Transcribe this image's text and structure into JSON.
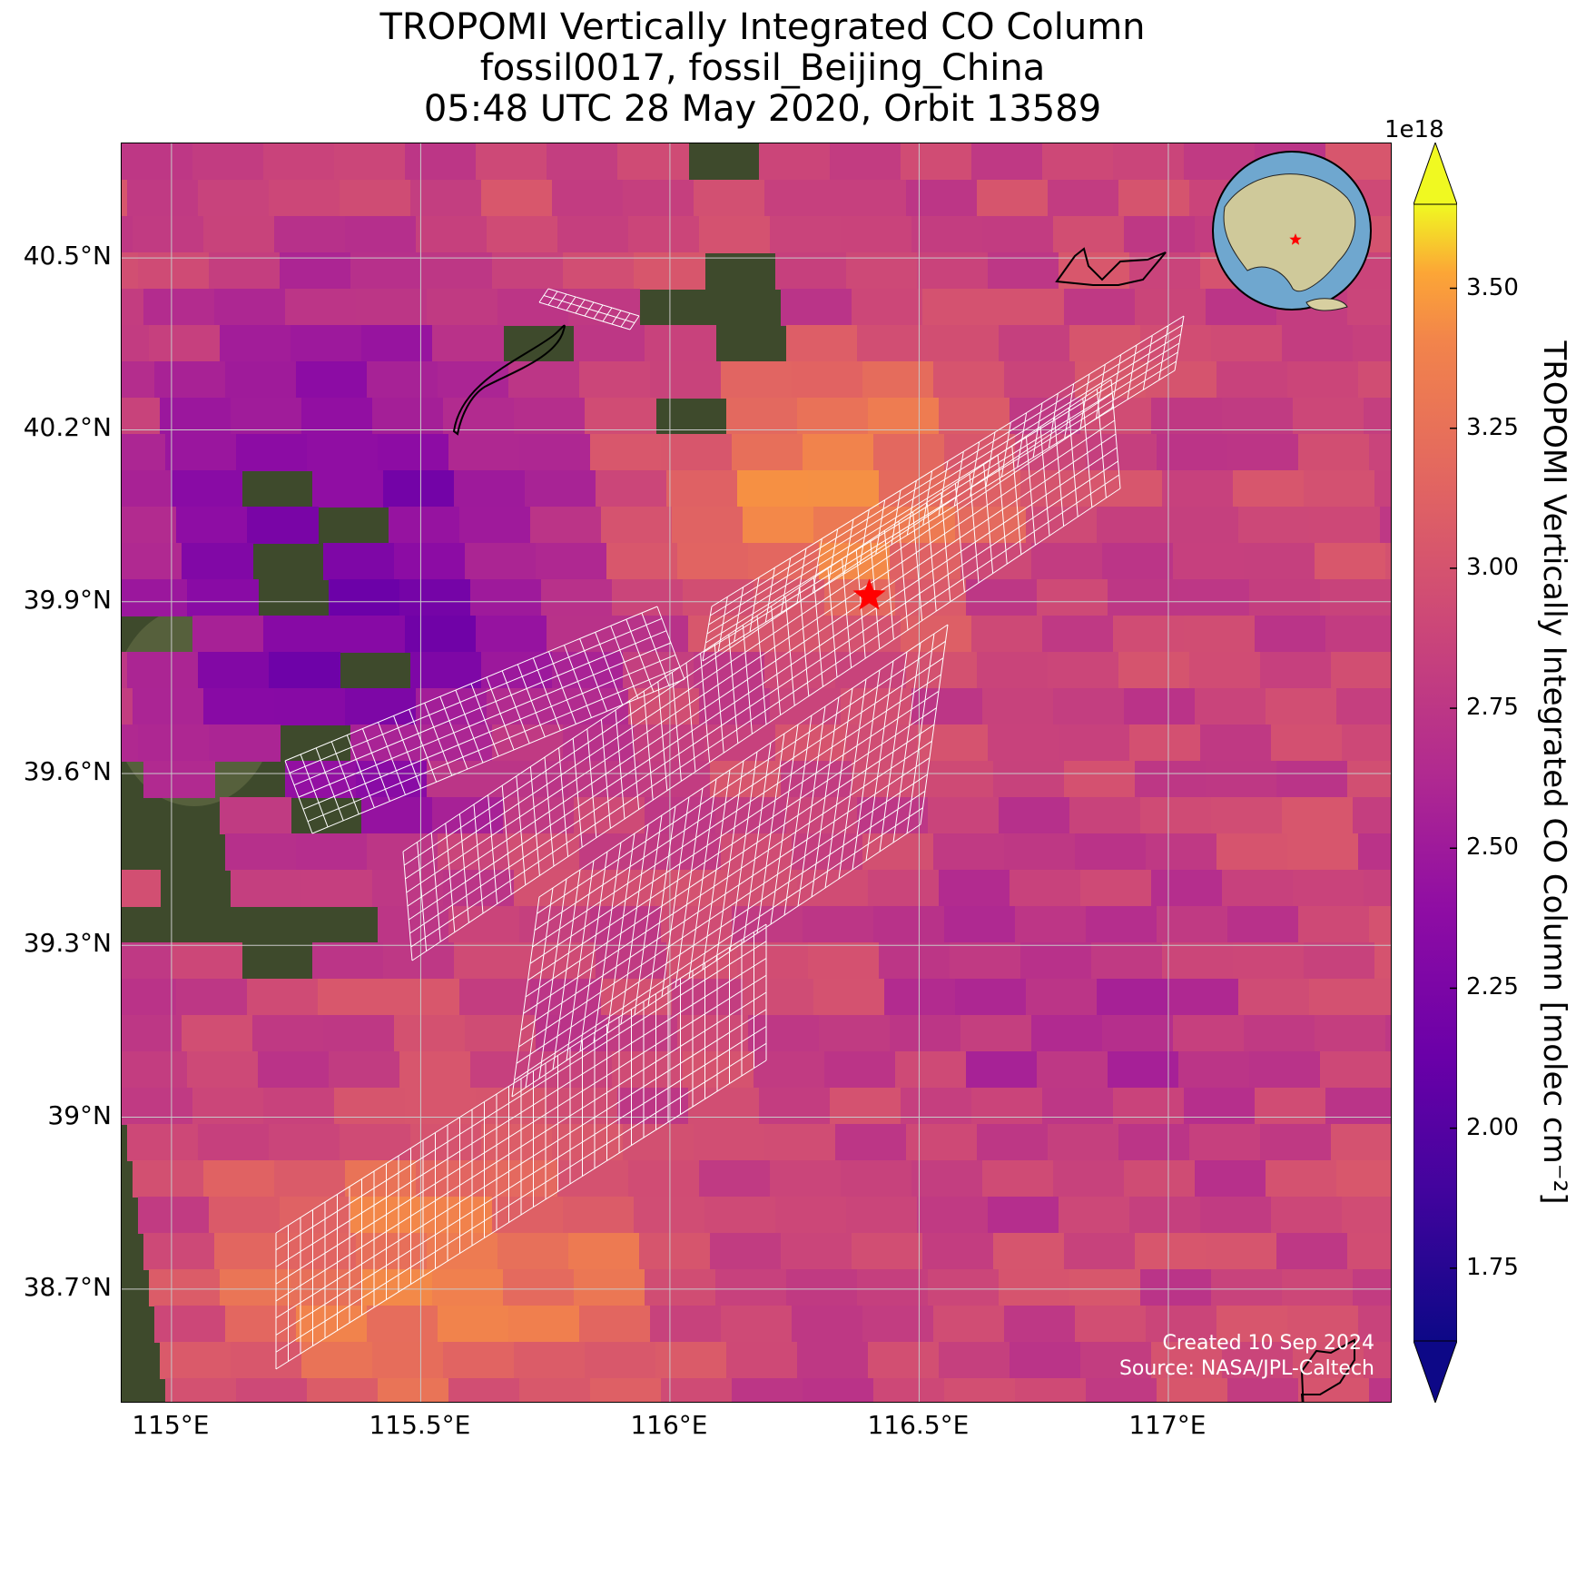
{
  "title": {
    "line1": "TROPOMI Vertically Integrated CO Column",
    "line2": "fossil0017, fossil_Beijing_China",
    "line3": "05:48 UTC 28 May 2020, Orbit 13589"
  },
  "map": {
    "lon_range": [
      114.9,
      117.45
    ],
    "lat_range": [
      38.5,
      40.7
    ],
    "lon_ticks": [
      {
        "value": 115.0,
        "label": "115°E"
      },
      {
        "value": 115.5,
        "label": "115.5°E"
      },
      {
        "value": 116.0,
        "label": "116°E"
      },
      {
        "value": 116.5,
        "label": "116.5°E"
      },
      {
        "value": 117.0,
        "label": "117°E"
      }
    ],
    "lat_ticks": [
      {
        "value": 40.5,
        "label": "40.5°N"
      },
      {
        "value": 40.2,
        "label": "40.2°N"
      },
      {
        "value": 39.9,
        "label": "39.9°N"
      },
      {
        "value": 39.6,
        "label": "39.6°N"
      },
      {
        "value": 39.3,
        "label": "39.3°N"
      },
      {
        "value": 39.0,
        "label": "39°N"
      },
      {
        "value": 38.7,
        "label": "38.7°N"
      }
    ],
    "target": {
      "lon": 116.4,
      "lat": 39.91,
      "color": "#ff0000",
      "icon": "star-icon"
    },
    "inset": {
      "icon": "globe-icon",
      "marker_color": "#ff0000"
    },
    "background": "satellite-imagery"
  },
  "credits": {
    "created": "Created 10 Sep 2024",
    "source": "Source: NASA/JPL-Caltech"
  },
  "colorbar": {
    "label": "TROPOMI Vertically Integrated CO Column [molec cm⁻²]",
    "multiplier": "1e18",
    "colormap": "plasma",
    "range": [
      1.62,
      3.65
    ],
    "extend": "both",
    "ticks": [
      {
        "value": 1.75,
        "label": "1.75"
      },
      {
        "value": 2.0,
        "label": "2.00"
      },
      {
        "value": 2.25,
        "label": "2.25"
      },
      {
        "value": 2.5,
        "label": "2.50"
      },
      {
        "value": 2.75,
        "label": "2.75"
      },
      {
        "value": 3.0,
        "label": "3.00"
      },
      {
        "value": 3.25,
        "label": "3.25"
      },
      {
        "value": 3.5,
        "label": "3.50"
      }
    ]
  }
}
